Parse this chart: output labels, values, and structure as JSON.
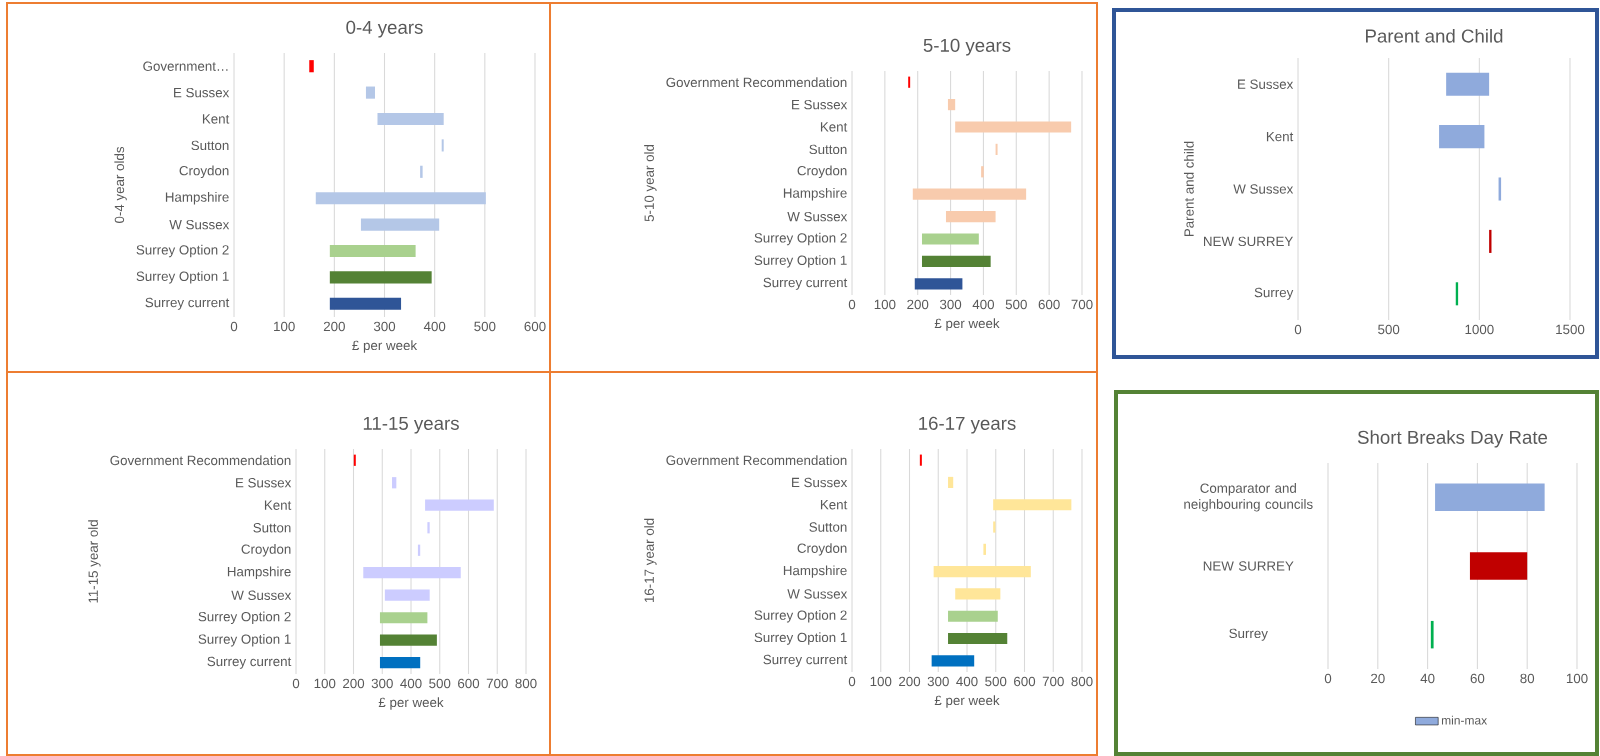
{
  "chart_data": [
    {
      "type": "bar",
      "orientation": "horizontal",
      "title": "0-4 years",
      "xlabel": "£ per week",
      "ylabel": "0-4 year olds",
      "categories": [
        "Government…",
        "E Sussex",
        "Kent",
        "Sutton",
        "Croydon",
        "Hampshire",
        "W Sussex",
        "Surrey Option 2",
        "Surrey Option 1",
        "Surrey current"
      ],
      "base": [
        150,
        263,
        286,
        414,
        371,
        163,
        253,
        191,
        191,
        191
      ],
      "values": [
        9,
        18,
        132,
        4,
        5,
        339,
        156,
        171,
        203,
        142
      ],
      "colors": [
        "#ff0000",
        "#b4c7e7",
        "#b4c7e7",
        "#b4c7e7",
        "#b4c7e7",
        "#b4c7e7",
        "#b4c7e7",
        "#a9d18e",
        "#548235",
        "#2f5597"
      ],
      "xlim": [
        0,
        600
      ],
      "xticks": [
        0,
        100,
        200,
        300,
        400,
        500,
        600
      ],
      "grid": "x"
    },
    {
      "type": "bar",
      "orientation": "horizontal",
      "title": "5-10 years",
      "xlabel": "£ per week",
      "ylabel": "5-10 year old",
      "categories": [
        "Government Recommendation",
        "E Sussex",
        "Kent",
        "Sutton",
        "Croydon",
        "Hampshire",
        "W Sussex",
        "Surrey Option 2",
        "Surrey Option 1",
        "Surrey current"
      ],
      "base": [
        171,
        292,
        314,
        437,
        393,
        185,
        286,
        213,
        213,
        191
      ],
      "values": [
        6,
        22,
        353,
        6,
        8,
        345,
        151,
        173,
        209,
        145
      ],
      "colors": [
        "#ff0000",
        "#f8cbad",
        "#f8cbad",
        "#f8cbad",
        "#f8cbad",
        "#f8cbad",
        "#f8cbad",
        "#a9d18e",
        "#548235",
        "#2f5597"
      ],
      "xlim": [
        0,
        700
      ],
      "xticks": [
        0,
        100,
        200,
        300,
        400,
        500,
        600,
        700
      ],
      "grid": "x"
    },
    {
      "type": "bar",
      "orientation": "horizontal",
      "title": "Parent and Child",
      "ylabel": "Parent and child",
      "categories": [
        "E Sussex",
        "Kent",
        "W Sussex",
        "NEW SURREY",
        "Surrey"
      ],
      "base": [
        817,
        778,
        1106,
        1054,
        870
      ],
      "values": [
        237,
        250,
        14,
        13,
        13
      ],
      "colors": [
        "#8faadc",
        "#8faadc",
        "#8faadc",
        "#c00000",
        "#00b050"
      ],
      "xlim": [
        0,
        1500
      ],
      "xticks": [
        0,
        500,
        1000,
        1500
      ],
      "grid": "x"
    },
    {
      "type": "bar",
      "orientation": "horizontal",
      "title": "11-15 years",
      "xlabel": "£ per week",
      "ylabel": "11-15 year old",
      "categories": [
        "Government Recommendation",
        "E Sussex",
        "Kent",
        "Sutton",
        "Croydon",
        "Hampshire",
        "W Sussex",
        "Surrey Option 2",
        "Surrey Option 1",
        "Surrey current"
      ],
      "base": [
        201,
        334,
        449,
        457,
        424,
        234,
        309,
        292,
        292,
        292
      ],
      "values": [
        7,
        15,
        239,
        8,
        8,
        339,
        156,
        165,
        198,
        140
      ],
      "colors": [
        "#ff0000",
        "#ccccff",
        "#ccccff",
        "#ccccff",
        "#ccccff",
        "#ccccff",
        "#ccccff",
        "#a9d18e",
        "#548235",
        "#0070c0"
      ],
      "xlim": [
        0,
        800
      ],
      "xticks": [
        0,
        100,
        200,
        300,
        400,
        500,
        600,
        700,
        800
      ],
      "grid": "x"
    },
    {
      "type": "bar",
      "orientation": "horizontal",
      "title": "16-17 years",
      "xlabel": "£ per week",
      "ylabel": "16-17 year old",
      "categories": [
        "Government Recommendation",
        "E Sussex",
        "Kent",
        "Sutton",
        "Croydon",
        "Hampshire",
        "W Sussex",
        "Surrey Option 2",
        "Surrey Option 1",
        "Surrey current"
      ],
      "base": [
        236,
        334,
        491,
        491,
        457,
        284,
        359,
        334,
        334,
        277
      ],
      "values": [
        7,
        18,
        272,
        8,
        9,
        338,
        157,
        173,
        206,
        148
      ],
      "colors": [
        "#ff0000",
        "#ffe699",
        "#ffe699",
        "#ffe699",
        "#ffe699",
        "#ffe699",
        "#ffe699",
        "#a9d18e",
        "#548235",
        "#0070c0"
      ],
      "xlim": [
        0,
        800
      ],
      "xticks": [
        0,
        100,
        200,
        300,
        400,
        500,
        600,
        700,
        800
      ],
      "grid": "x"
    },
    {
      "type": "bar",
      "orientation": "horizontal",
      "title": "Short Breaks Day Rate",
      "categories": [
        "Comparator and neighbouring councils",
        "NEW SURREY",
        "Surrey"
      ],
      "series": [
        {
          "name": "min-max",
          "color": "#8faadc",
          "colors": [
            "#8faadc",
            "#c00000",
            "#00b050"
          ],
          "base": [
            43,
            57,
            41.3
          ],
          "values": [
            44,
            23,
            1.1
          ]
        }
      ],
      "xlim": [
        0,
        100
      ],
      "xticks": [
        0,
        20,
        40,
        60,
        80,
        100
      ],
      "grid": "x",
      "legend": "bottom"
    }
  ]
}
